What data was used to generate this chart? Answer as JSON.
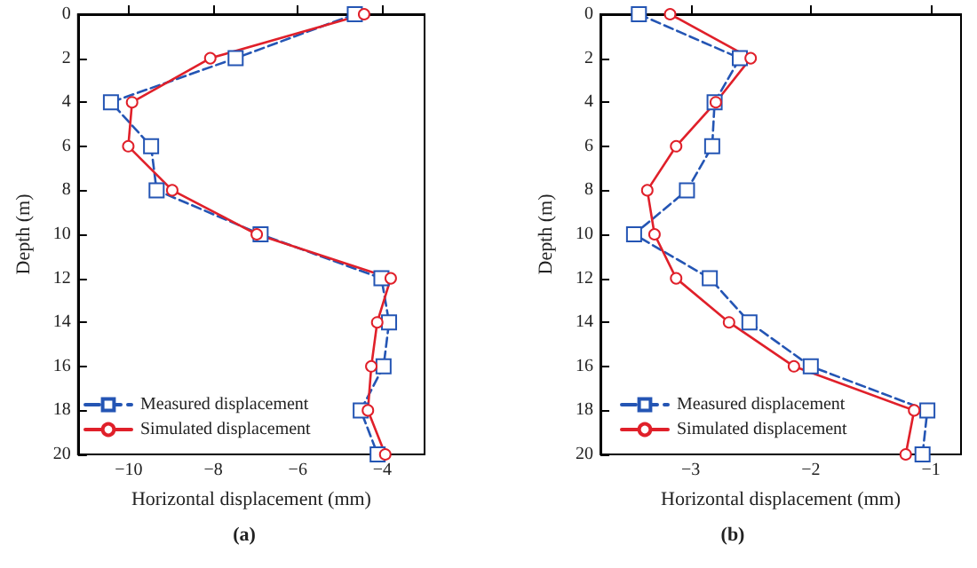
{
  "chart_data": [
    {
      "type": "line",
      "xlabel": "Horizontal displacement (mm)",
      "ylabel": "Depth (m)",
      "annotations": [
        "(a)"
      ],
      "xlim": [
        -11.2,
        -3.0
      ],
      "xticks": [
        -10,
        -8,
        -6,
        -4
      ],
      "ylim": [
        20,
        0
      ],
      "yticks": [
        0,
        2,
        4,
        6,
        8,
        10,
        12,
        14,
        16,
        18,
        20
      ],
      "grid": false,
      "legend": "bottom left",
      "series": [
        {
          "name": "Measured displacement",
          "color": "#2455b4",
          "marker": "square",
          "line_style": "dashed",
          "x": [
            -4.65,
            -7.47,
            -10.42,
            -9.47,
            -9.34,
            -6.88,
            -4.02,
            -3.84,
            -3.97,
            -4.51,
            -4.11
          ],
          "values": [
            0,
            2,
            4,
            6,
            8,
            10,
            12,
            14,
            16,
            18,
            20
          ]
        },
        {
          "name": "Simulated displacement",
          "color": "#e0202a",
          "marker": "circle",
          "line_style": "solid",
          "x": [
            -4.43,
            -8.07,
            -9.92,
            -10.01,
            -8.97,
            -6.97,
            -3.8,
            -4.12,
            -4.26,
            -4.34,
            -3.93
          ],
          "values": [
            0,
            2,
            4,
            6,
            8,
            10,
            12,
            14,
            16,
            18,
            20
          ]
        }
      ]
    },
    {
      "type": "line",
      "xlabel": "Horizontal displacement (mm)",
      "ylabel": "Depth (m)",
      "annotations": [
        "(b)"
      ],
      "xlim": [
        -3.75,
        -0.75
      ],
      "xticks": [
        -3,
        -2,
        -1
      ],
      "ylim": [
        20,
        0
      ],
      "yticks": [
        0,
        2,
        4,
        6,
        8,
        10,
        12,
        14,
        16,
        18,
        20
      ],
      "grid": false,
      "legend": "bottom left",
      "series": [
        {
          "name": "Measured displacement",
          "color": "#2455b4",
          "marker": "square",
          "line_style": "dashed",
          "x": [
            -3.43,
            -2.59,
            -2.8,
            -2.82,
            -3.03,
            -3.47,
            -2.84,
            -2.51,
            -2.0,
            -1.03,
            -1.07
          ],
          "values": [
            0,
            2,
            4,
            6,
            8,
            10,
            12,
            14,
            16,
            18,
            20
          ]
        },
        {
          "name": "Simulated displacement",
          "color": "#e0202a",
          "marker": "circle",
          "line_style": "solid",
          "x": [
            -3.17,
            -2.5,
            -2.79,
            -3.12,
            -3.36,
            -3.3,
            -3.12,
            -2.68,
            -2.14,
            -1.14,
            -1.21
          ],
          "values": [
            0,
            2,
            4,
            6,
            8,
            10,
            12,
            14,
            16,
            18,
            20
          ]
        }
      ]
    }
  ]
}
